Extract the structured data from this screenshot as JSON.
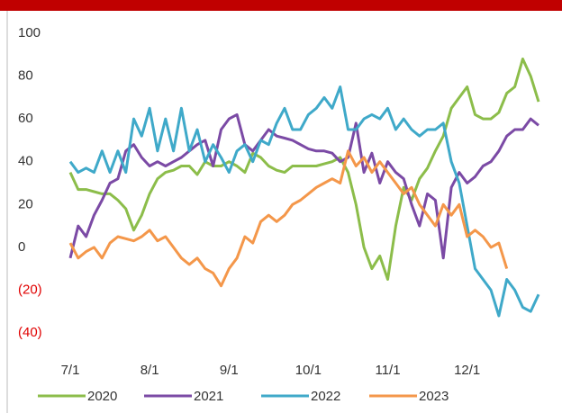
{
  "chart_data": {
    "type": "line",
    "categories": [
      "7/1",
      null,
      null,
      null,
      null,
      null,
      null,
      null,
      null,
      null,
      "8/1",
      null,
      null,
      null,
      null,
      null,
      null,
      null,
      null,
      null,
      "9/1",
      null,
      null,
      null,
      null,
      null,
      null,
      null,
      null,
      null,
      "10/1",
      null,
      null,
      null,
      null,
      null,
      null,
      null,
      null,
      null,
      "11/1",
      null,
      null,
      null,
      null,
      null,
      null,
      null,
      null,
      null,
      "12/1",
      null,
      null,
      null,
      null,
      null,
      null,
      null,
      null,
      null
    ],
    "series": [
      {
        "name": "2020",
        "color": "#8cbd4a",
        "values": [
          35,
          27,
          27,
          26,
          25,
          25,
          22,
          18,
          8,
          15,
          25,
          32,
          35,
          36,
          38,
          38,
          34,
          40,
          38,
          38,
          40,
          38,
          35,
          44,
          42,
          38,
          36,
          35,
          38,
          38,
          38,
          38,
          39,
          40,
          42,
          35,
          20,
          0,
          -10,
          -4,
          -15,
          10,
          28,
          22,
          32,
          37,
          45,
          52,
          65,
          70,
          75,
          62,
          60,
          60,
          63,
          72,
          75,
          88,
          80,
          68
        ]
      },
      {
        "name": "2021",
        "color": "#7b4aa5",
        "values": [
          -5,
          10,
          5,
          15,
          22,
          30,
          32,
          45,
          48,
          42,
          38,
          40,
          38,
          40,
          42,
          45,
          48,
          50,
          38,
          55,
          60,
          62,
          48,
          45,
          50,
          55,
          52,
          51,
          50,
          48,
          46,
          45,
          45,
          44,
          40,
          42,
          58,
          35,
          44,
          30,
          40,
          35,
          32,
          20,
          10,
          25,
          22,
          -5,
          28,
          35,
          30,
          33,
          38,
          40,
          45,
          52,
          55,
          55,
          60,
          57
        ]
      },
      {
        "name": "2022",
        "color": "#3fa9c9",
        "values": [
          40,
          35,
          37,
          35,
          45,
          35,
          45,
          35,
          60,
          52,
          65,
          45,
          60,
          45,
          65,
          45,
          55,
          40,
          48,
          42,
          35,
          45,
          48,
          40,
          50,
          48,
          58,
          65,
          55,
          55,
          62,
          65,
          70,
          65,
          75,
          55,
          55,
          60,
          62,
          60,
          65,
          55,
          60,
          55,
          52,
          55,
          55,
          58,
          40,
          30,
          10,
          -10,
          -15,
          -20,
          -32,
          -15,
          -20,
          -28,
          -30,
          -22
        ]
      },
      {
        "name": "2023",
        "color": "#f4974a",
        "values": [
          2,
          -5,
          -2,
          0,
          -5,
          2,
          5,
          4,
          3,
          5,
          8,
          3,
          5,
          0,
          -5,
          -8,
          -5,
          -10,
          -12,
          -18,
          -10,
          -5,
          5,
          2,
          12,
          15,
          12,
          15,
          20,
          22,
          25,
          28,
          30,
          32,
          30,
          45,
          38,
          42,
          35,
          40,
          35,
          30,
          25,
          28,
          20,
          15,
          10,
          20,
          15,
          20,
          5,
          8,
          5,
          0,
          2,
          -10,
          null,
          null,
          null,
          null
        ]
      }
    ],
    "ylim": [
      -40,
      100
    ],
    "yticks": [
      {
        "value": -40,
        "label": "(40)"
      },
      {
        "value": -20,
        "label": "(20)"
      },
      0,
      20,
      40,
      60,
      80,
      100
    ],
    "negative_tick_color": "#e00000",
    "grid": false,
    "legend": "bottom"
  }
}
